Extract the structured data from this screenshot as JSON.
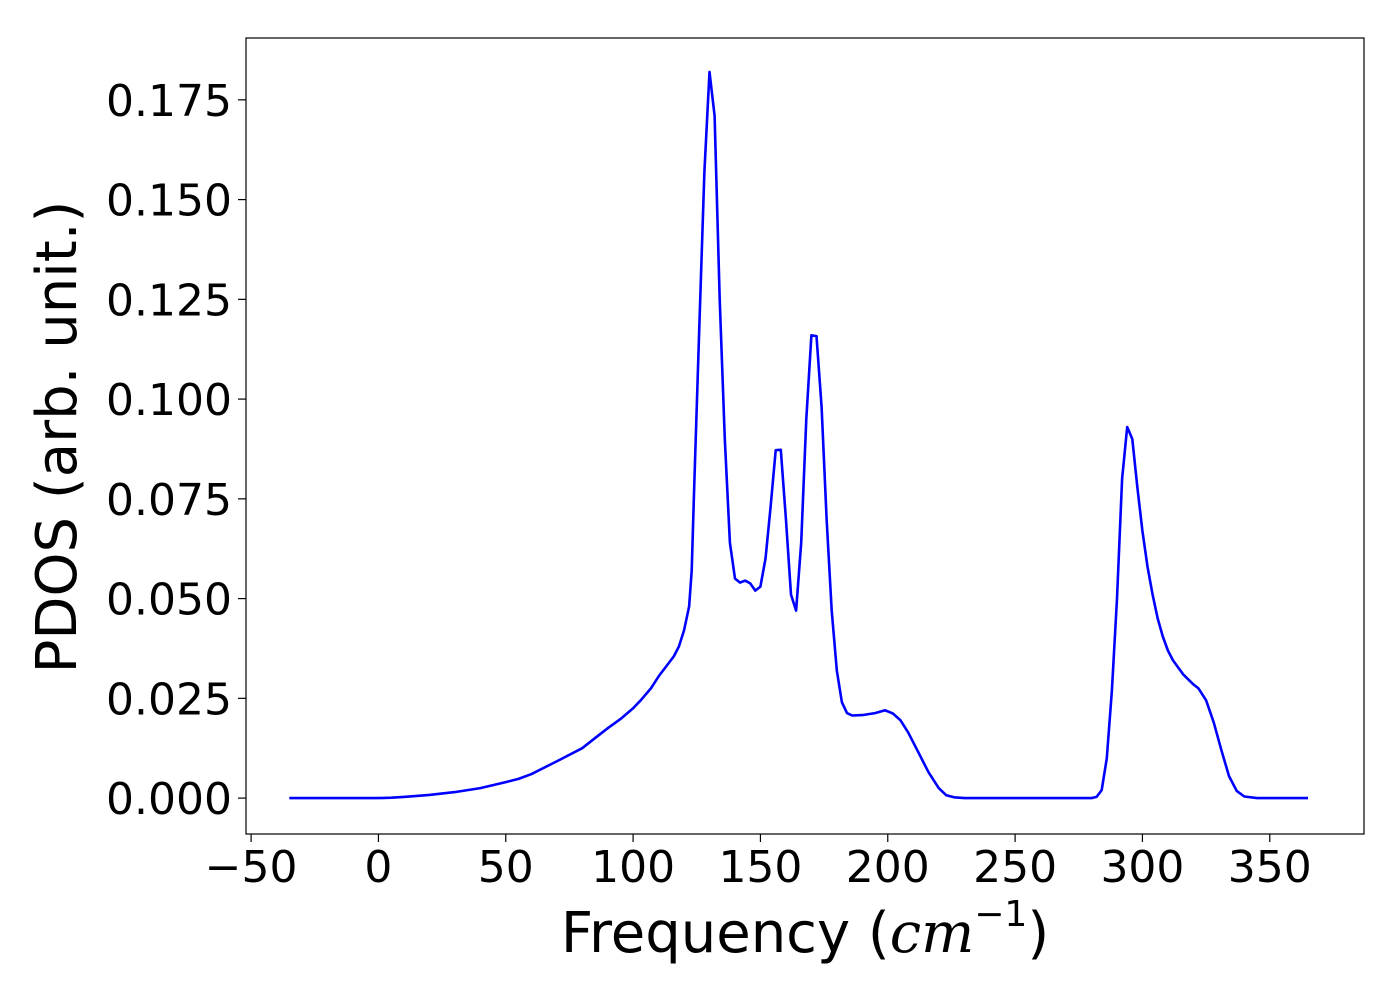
{
  "chart_data": {
    "type": "line",
    "xlabel_text": "Frequency (",
    "xlabel_unit_base": "cm",
    "xlabel_unit_exp": "−1",
    "xlabel_close": ")",
    "ylabel": "PDOS (arb. unit.)",
    "xlim": [
      -52,
      387
    ],
    "ylim": [
      -0.009,
      0.1905
    ],
    "xticks": [
      -50,
      0,
      50,
      100,
      150,
      200,
      250,
      300,
      350
    ],
    "xtick_labels": [
      "−50",
      "0",
      "50",
      "100",
      "150",
      "200",
      "250",
      "300",
      "350"
    ],
    "yticks": [
      0.0,
      0.025,
      0.05,
      0.075,
      0.1,
      0.125,
      0.15,
      0.175
    ],
    "ytick_labels": [
      "0.000",
      "0.025",
      "0.050",
      "0.075",
      "0.100",
      "0.125",
      "0.150",
      "0.175"
    ],
    "grid": false,
    "series": [
      {
        "color": "#0000ff",
        "x": [
          -35,
          0,
          5,
          10,
          20,
          30,
          40,
          50,
          55,
          60,
          70,
          80,
          85,
          90,
          95,
          100,
          103,
          107,
          110,
          113,
          116,
          118,
          120,
          122,
          123,
          124,
          126,
          128,
          130,
          132,
          134,
          136,
          138,
          140,
          142,
          144,
          146,
          148,
          150,
          152,
          154,
          156,
          158,
          160,
          162,
          164,
          166,
          168,
          170,
          172,
          174,
          176,
          178,
          180,
          182,
          184,
          186,
          190,
          195,
          199,
          202,
          205,
          208,
          212,
          216,
          220,
          223,
          226,
          230,
          240,
          250,
          260,
          270,
          280,
          282,
          284,
          286,
          288,
          290,
          292,
          294,
          296,
          298,
          300,
          302,
          304,
          306,
          308,
          310,
          312,
          316,
          320,
          322,
          325,
          328,
          331,
          334,
          337,
          340,
          345,
          355,
          365
        ],
        "y": [
          0.0,
          0.0,
          0.0001,
          0.0003,
          0.0008,
          0.0015,
          0.0025,
          0.004,
          0.0048,
          0.006,
          0.0092,
          0.0125,
          0.015,
          0.0175,
          0.0198,
          0.0225,
          0.0245,
          0.0275,
          0.0305,
          0.033,
          0.0355,
          0.038,
          0.042,
          0.048,
          0.057,
          0.078,
          0.118,
          0.157,
          0.182,
          0.171,
          0.125,
          0.09,
          0.064,
          0.055,
          0.054,
          0.0545,
          0.0538,
          0.052,
          0.053,
          0.06,
          0.073,
          0.0872,
          0.0873,
          0.07,
          0.051,
          0.047,
          0.064,
          0.095,
          0.116,
          0.1158,
          0.098,
          0.07,
          0.047,
          0.032,
          0.024,
          0.0213,
          0.0207,
          0.0208,
          0.0213,
          0.022,
          0.0212,
          0.0195,
          0.0165,
          0.0115,
          0.0065,
          0.0025,
          0.0007,
          0.0002,
          0.0,
          0.0,
          0.0,
          0.0,
          0.0,
          0.0,
          0.0003,
          0.002,
          0.01,
          0.027,
          0.05,
          0.08,
          0.093,
          0.09,
          0.078,
          0.067,
          0.058,
          0.051,
          0.045,
          0.0405,
          0.037,
          0.0345,
          0.031,
          0.0285,
          0.0275,
          0.0245,
          0.019,
          0.012,
          0.0055,
          0.0018,
          0.0004,
          0.0,
          0.0,
          0.0
        ]
      }
    ]
  }
}
